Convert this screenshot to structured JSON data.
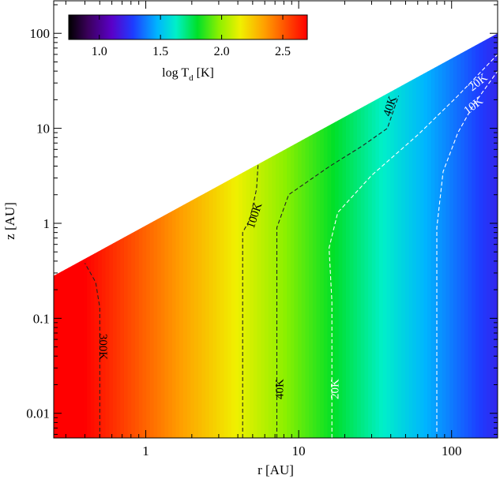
{
  "chart_data": {
    "type": "heatmap",
    "title": "",
    "xlabel": "r [AU]",
    "ylabel": "z [AU]",
    "x_scale": "log",
    "y_scale": "log",
    "xlim": [
      0.25,
      200
    ],
    "ylim": [
      0.0055,
      220
    ],
    "x_ticks": [
      {
        "value": 1,
        "label": "1"
      },
      {
        "value": 10,
        "label": "10"
      },
      {
        "value": 100,
        "label": "100"
      }
    ],
    "y_ticks": [
      {
        "value": 0.01,
        "label": "0.01"
      },
      {
        "value": 0.1,
        "label": "0.1"
      },
      {
        "value": 1,
        "label": "1"
      },
      {
        "value": 10,
        "label": "10"
      },
      {
        "value": 100,
        "label": "100"
      }
    ],
    "colorbar": {
      "label_main": "log T",
      "label_sub": "d",
      "label_unit": " [K]",
      "range": [
        0.75,
        2.7
      ],
      "colormap": "rainbow",
      "ticks": [
        {
          "value": 1.0,
          "label": "1.0"
        },
        {
          "value": 1.5,
          "label": "1.5"
        },
        {
          "value": 2.0,
          "label": "2.0"
        },
        {
          "value": 2.5,
          "label": "2.5"
        }
      ],
      "placement": "top-left"
    },
    "surface_boundary": {
      "x": [
        0.25,
        200
      ],
      "z": [
        0.28,
        100
      ]
    },
    "contours": [
      {
        "name": "300K",
        "label": "300K",
        "line_color": "#222222",
        "label_color": "#000000",
        "points": [
          [
            0.5,
            0.0055
          ],
          [
            0.5,
            0.13
          ],
          [
            0.47,
            0.24
          ],
          [
            0.4,
            0.38
          ]
        ]
      },
      {
        "name": "100K",
        "label": "100K",
        "line_color": "#222222",
        "label_color": "#000000",
        "points": [
          [
            4.3,
            0.0055
          ],
          [
            4.3,
            0.8
          ],
          [
            4.8,
            1.1
          ],
          [
            5.3,
            2.3
          ],
          [
            5.5,
            6
          ]
        ]
      },
      {
        "name": "40K",
        "label": "40K",
        "line_color": "#222222",
        "label_color": "#000000",
        "points": [
          [
            7.2,
            0.0055
          ],
          [
            7.2,
            0.9
          ],
          [
            8.6,
            2
          ],
          [
            16,
            4
          ],
          [
            26,
            6.5
          ],
          [
            38,
            10
          ],
          [
            45,
            22
          ]
        ]
      },
      {
        "name": "20K",
        "label": "20K",
        "line_color": "#ffffff",
        "label_color": "#ffffff",
        "points": [
          [
            16.5,
            0.0055
          ],
          [
            16.5,
            0.15
          ],
          [
            15.8,
            0.55
          ],
          [
            18,
            1.3
          ],
          [
            30,
            3.2
          ],
          [
            60,
            8.5
          ],
          [
            110,
            22
          ],
          [
            200,
            60
          ]
        ]
      },
      {
        "name": "10K",
        "label": "10K",
        "line_color": "#ffffff",
        "label_color": "#ffffff",
        "points": [
          [
            80,
            0.0055
          ],
          [
            80,
            0.9
          ],
          [
            88,
            3.5
          ],
          [
            110,
            9
          ],
          [
            140,
            18
          ],
          [
            200,
            40
          ]
        ]
      }
    ],
    "value_labels": [
      {
        "contour": "300K",
        "x": 0.52,
        "z": 0.05,
        "rotate": 90
      },
      {
        "contour": "100K",
        "x": 5.2,
        "z": 1.2,
        "rotate": -72
      },
      {
        "contour": "40K",
        "x": 7.6,
        "z": 0.018,
        "rotate": -90
      },
      {
        "contour": "40K",
        "x": 40,
        "z": 17,
        "rotate": -72
      },
      {
        "contour": "20K",
        "x": 17.5,
        "z": 0.018,
        "rotate": -90
      },
      {
        "contour": "20K",
        "x": 150,
        "z": 30,
        "rotate": -38
      },
      {
        "contour": "10K",
        "x": 140,
        "z": 17,
        "rotate": -38
      }
    ]
  }
}
